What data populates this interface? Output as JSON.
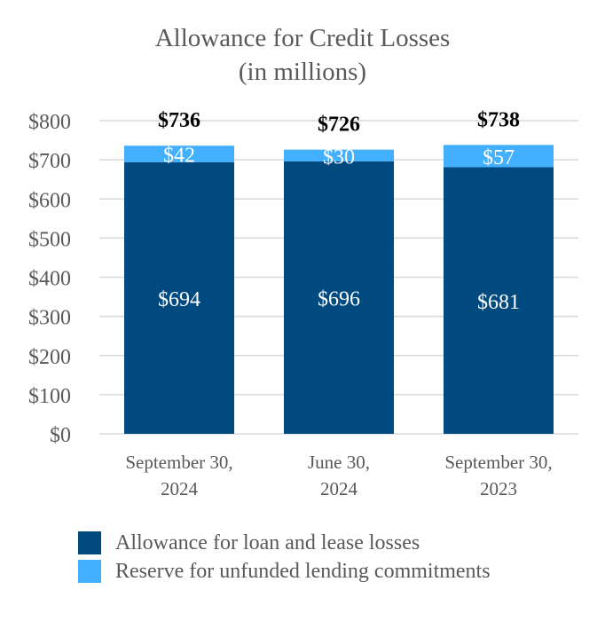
{
  "chart_data": {
    "type": "bar",
    "stacked": true,
    "title": "Allowance for Credit Losses",
    "subtitle": "(in millions)",
    "categories": [
      [
        "September 30,",
        "2024"
      ],
      [
        "June 30,",
        "2024"
      ],
      [
        "September 30,",
        "2023"
      ]
    ],
    "series": [
      {
        "name": "Allowance for loan and lease losses",
        "color": "#004a80",
        "values": [
          694,
          696,
          681
        ],
        "labels": [
          "$694",
          "$696",
          "$681"
        ]
      },
      {
        "name": "Reserve for unfunded lending commitments",
        "color": "#42b0ff",
        "values": [
          42,
          30,
          57
        ],
        "labels": [
          "$42",
          "$30",
          "$57"
        ]
      }
    ],
    "totals": [
      "$736",
      "$726",
      "$738"
    ],
    "y_ticks": [
      "$0",
      "$100",
      "$200",
      "$300",
      "$400",
      "$500",
      "$600",
      "$700",
      "$800"
    ],
    "ylim": [
      0,
      800
    ],
    "grid": true,
    "legend_position": "bottom"
  }
}
